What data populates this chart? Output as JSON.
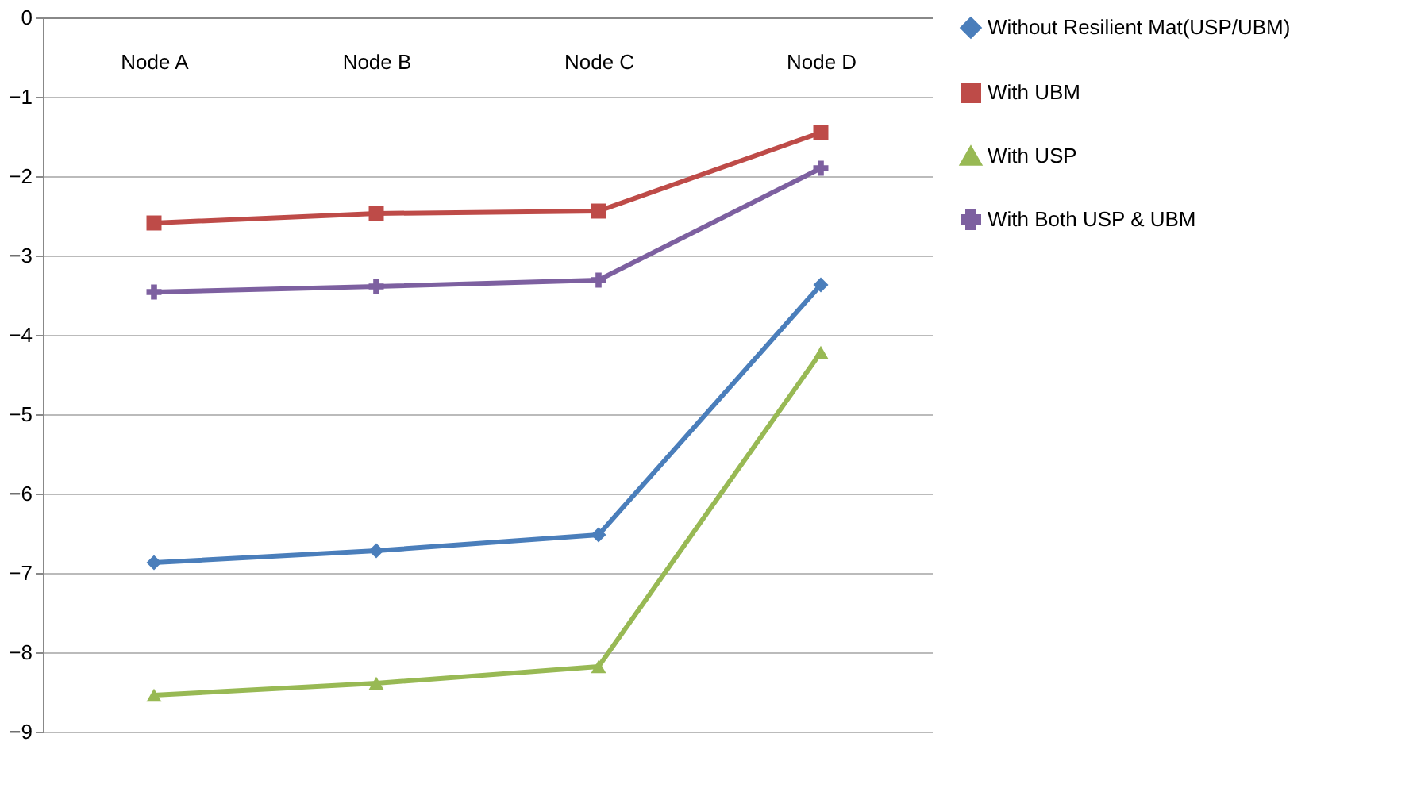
{
  "chart_data": {
    "type": "line",
    "categories": [
      "Node A",
      "Node B",
      "Node C",
      "Node D"
    ],
    "series": [
      {
        "name": "Without Resilient Mat(USP/UBM)",
        "color": "#4a7ebb",
        "marker": "diamond",
        "values": [
          -6.87,
          -6.72,
          -6.52,
          -3.37
        ]
      },
      {
        "name": "With UBM",
        "color": "#be4b48",
        "marker": "square",
        "values": [
          -2.59,
          -2.47,
          -2.44,
          -1.45
        ]
      },
      {
        "name": "With USP",
        "color": "#98b954",
        "marker": "triangle",
        "values": [
          -8.54,
          -8.39,
          -8.18,
          -4.22
        ]
      },
      {
        "name": "With Both USP & UBM",
        "color": "#7d60a0",
        "marker": "cross",
        "values": [
          -3.46,
          -3.39,
          -3.31,
          -1.9
        ]
      }
    ],
    "ylim": [
      -9,
      0
    ],
    "yticks": [
      0,
      -1,
      -2,
      -3,
      -4,
      -5,
      -6,
      -7,
      -8,
      -9
    ],
    "grid": "y",
    "legend": "right"
  }
}
